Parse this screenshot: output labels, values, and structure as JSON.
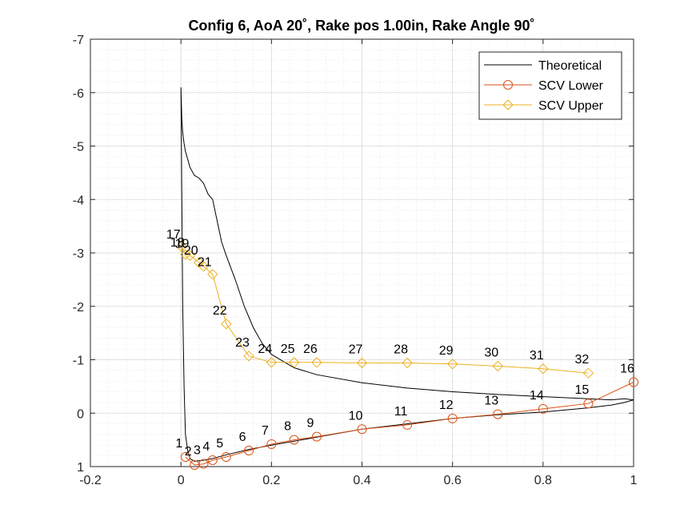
{
  "chart_data": {
    "type": "line",
    "title": "Config 6, AoA 20˚, Rake pos 1.00in, Rake Angle 90˚",
    "xlabel": "",
    "ylabel": "",
    "xlim": [
      -0.2,
      1
    ],
    "ylim": [
      1,
      -7
    ],
    "y_reversed": true,
    "grid": true,
    "minor_grid": true,
    "legend_position": "top-right",
    "x_ticks": [
      -0.2,
      0,
      0.2,
      0.4,
      0.6,
      0.8,
      1
    ],
    "x_tick_labels": [
      "-0.2",
      "0",
      "0.2",
      "0.4",
      "0.6",
      "0.8",
      "1"
    ],
    "y_ticks": [
      -7,
      -6,
      -5,
      -4,
      -3,
      -2,
      -1,
      0,
      1
    ],
    "y_tick_labels": [
      "-7",
      "-6",
      "-5",
      "-4",
      "-3",
      "-2",
      "-1",
      "0",
      "1"
    ],
    "series": [
      {
        "name": "Theoretical",
        "color": "#000000",
        "marker": "none",
        "x": [
          0.0,
          0.001,
          0.002,
          0.004,
          0.007,
          0.01,
          0.015,
          0.02,
          0.03,
          0.04,
          0.05,
          0.06,
          0.07,
          0.08,
          0.09,
          0.1,
          0.12,
          0.14,
          0.16,
          0.18,
          0.2,
          0.25,
          0.3,
          0.4,
          0.5,
          0.6,
          0.7,
          0.8,
          0.9,
          0.95,
          0.98,
          1.0,
          0.98,
          0.95,
          0.9,
          0.8,
          0.7,
          0.6,
          0.5,
          0.4,
          0.3,
          0.2,
          0.15,
          0.1,
          0.07,
          0.05,
          0.03,
          0.02,
          0.015,
          0.01,
          0.007,
          0.004,
          0.002,
          0.0
        ],
        "y": [
          -6.1,
          -5.8,
          -5.5,
          -5.25,
          -5.05,
          -4.9,
          -4.75,
          -4.6,
          -4.45,
          -4.4,
          -4.3,
          -4.1,
          -4.0,
          -3.6,
          -3.2,
          -2.95,
          -2.5,
          -2.0,
          -1.6,
          -1.3,
          -1.1,
          -0.85,
          -0.72,
          -0.57,
          -0.47,
          -0.4,
          -0.35,
          -0.31,
          -0.27,
          -0.25,
          -0.27,
          -0.25,
          -0.2,
          -0.15,
          -0.1,
          -0.02,
          0.03,
          0.1,
          0.2,
          0.3,
          0.45,
          0.6,
          0.68,
          0.78,
          0.85,
          0.88,
          0.9,
          0.85,
          0.7,
          0.4,
          -0.5,
          -2.0,
          -4.0,
          -6.1
        ]
      },
      {
        "name": "SCV Lower",
        "color": "#D95319",
        "marker": "circle",
        "x": [
          0.01,
          0.03,
          0.05,
          0.07,
          0.1,
          0.15,
          0.2,
          0.25,
          0.3,
          0.4,
          0.5,
          0.6,
          0.7,
          0.8,
          0.9,
          1.0
        ],
        "y": [
          0.82,
          0.97,
          0.95,
          0.88,
          0.82,
          0.7,
          0.58,
          0.5,
          0.44,
          0.3,
          0.22,
          0.1,
          0.02,
          -0.08,
          -0.18,
          -0.58
        ],
        "labels": [
          "1",
          "2",
          "3",
          "4",
          "5",
          "6",
          "7",
          "8",
          "9",
          "10",
          "11",
          "12",
          "13",
          "14",
          "15",
          "16"
        ]
      },
      {
        "name": "SCV Upper",
        "color": "#EDB120",
        "marker": "diamond",
        "x": [
          0.001,
          0.01,
          0.02,
          0.04,
          0.05,
          0.07,
          0.1,
          0.15,
          0.2,
          0.25,
          0.3,
          0.4,
          0.5,
          0.6,
          0.7,
          0.8,
          0.9
        ],
        "y": [
          -3.12,
          -2.97,
          -2.95,
          -2.82,
          -2.75,
          -2.6,
          -1.67,
          -1.07,
          -0.95,
          -0.95,
          -0.95,
          -0.94,
          -0.94,
          -0.92,
          -0.88,
          -0.83,
          -0.75
        ],
        "labels": [
          "17",
          "18",
          "19",
          "20",
          "",
          "21",
          "22",
          "23",
          "24",
          "25",
          "26",
          "27",
          "28",
          "29",
          "30",
          "31",
          "32"
        ]
      }
    ]
  }
}
